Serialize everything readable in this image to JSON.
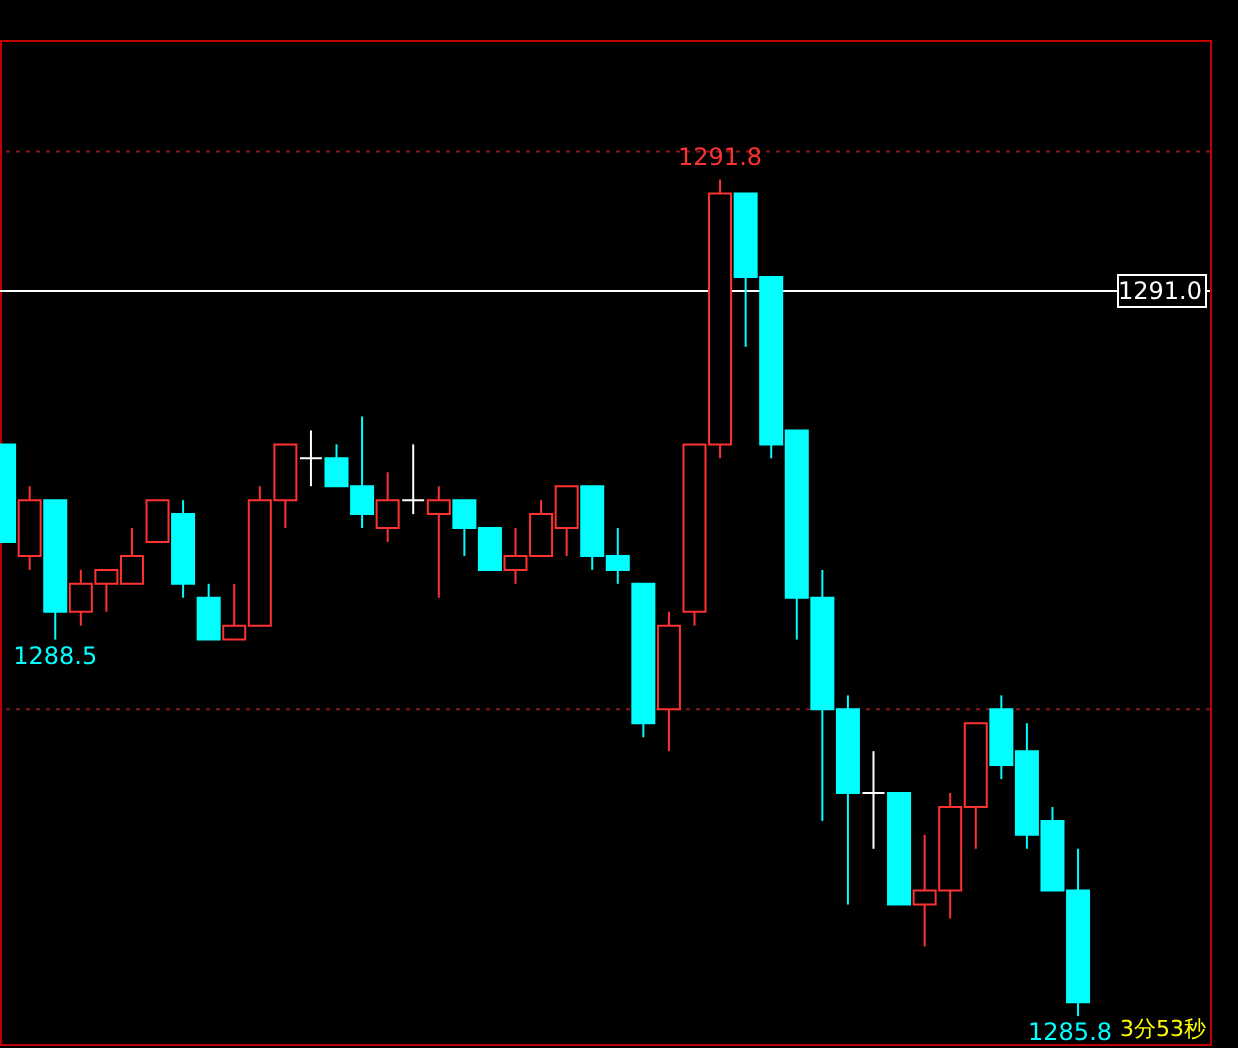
{
  "chart_data": {
    "type": "candlestick",
    "categories": [
      null,
      null,
      null,
      null,
      null,
      null,
      null,
      null,
      null,
      null,
      null,
      null,
      null,
      null,
      null,
      null,
      null,
      null,
      null,
      null,
      null,
      null,
      null,
      null,
      null,
      null,
      null,
      null,
      null,
      null,
      null,
      null,
      null,
      null,
      null,
      null,
      null,
      null,
      null,
      null,
      null,
      null,
      null
    ],
    "ohlc": [
      [
        1289.9,
        1289.9,
        1289.2,
        1289.2
      ],
      [
        1289.1,
        1289.6,
        1289.0,
        1289.5
      ],
      [
        1289.5,
        1289.5,
        1288.5,
        1288.7
      ],
      [
        1288.7,
        1289.0,
        1288.6,
        1288.9
      ],
      [
        1288.9,
        1289.0,
        1288.7,
        1289.0
      ],
      [
        1288.9,
        1289.3,
        1288.9,
        1289.1
      ],
      [
        1289.2,
        1289.5,
        1289.2,
        1289.5
      ],
      [
        1289.4,
        1289.5,
        1288.8,
        1288.9
      ],
      [
        1288.8,
        1288.9,
        1288.5,
        1288.5
      ],
      [
        1288.5,
        1288.9,
        1288.5,
        1288.6
      ],
      [
        1288.6,
        1289.6,
        1288.6,
        1289.5
      ],
      [
        1289.5,
        1289.9,
        1289.3,
        1289.9
      ],
      [
        1289.8,
        1290.0,
        1289.6,
        1289.8
      ],
      [
        1289.8,
        1289.9,
        1289.6,
        1289.6
      ],
      [
        1289.6,
        1290.1,
        1289.3,
        1289.4
      ],
      [
        1289.3,
        1289.7,
        1289.2,
        1289.5
      ],
      [
        1289.5,
        1289.9,
        1289.4,
        1289.5
      ],
      [
        1289.4,
        1289.6,
        1288.8,
        1289.5
      ],
      [
        1289.5,
        1289.5,
        1289.1,
        1289.3
      ],
      [
        1289.3,
        1289.3,
        1289.0,
        1289.0
      ],
      [
        1289.0,
        1289.3,
        1288.9,
        1289.1
      ],
      [
        1289.1,
        1289.5,
        1289.1,
        1289.4
      ],
      [
        1289.3,
        1289.6,
        1289.1,
        1289.6
      ],
      [
        1289.6,
        1289.6,
        1289.0,
        1289.1
      ],
      [
        1289.1,
        1289.3,
        1288.9,
        1289.0
      ],
      [
        1288.9,
        1288.9,
        1287.8,
        1287.9
      ],
      [
        1288.0,
        1288.7,
        1287.7,
        1288.6
      ],
      [
        1288.7,
        1289.9,
        1288.6,
        1289.9
      ],
      [
        1289.9,
        1291.8,
        1289.8,
        1291.7
      ],
      [
        1291.7,
        1291.7,
        1290.6,
        1291.1
      ],
      [
        1291.1,
        1291.1,
        1289.8,
        1289.9
      ],
      [
        1290.0,
        1290.0,
        1288.5,
        1288.8
      ],
      [
        1288.8,
        1289.0,
        1287.2,
        1288.0
      ],
      [
        1288.0,
        1288.1,
        1286.6,
        1287.4
      ],
      [
        1287.4,
        1287.7,
        1287.0,
        1287.4
      ],
      [
        1287.4,
        1287.4,
        1286.6,
        1286.6
      ],
      [
        1286.6,
        1287.1,
        1286.3,
        1286.7
      ],
      [
        1286.7,
        1287.4,
        1286.5,
        1287.3
      ],
      [
        1287.3,
        1287.9,
        1287.0,
        1287.9
      ],
      [
        1288.0,
        1288.1,
        1287.5,
        1287.6
      ],
      [
        1287.7,
        1287.9,
        1287.0,
        1287.1
      ],
      [
        1287.2,
        1287.3,
        1286.7,
        1286.7
      ],
      [
        1286.7,
        1287.0,
        1285.8,
        1285.9
      ]
    ],
    "colors": [
      "#00ffff",
      "#ff3232",
      "#00ffff",
      "#ff3232",
      "#ff3232",
      "#ff3232",
      "#ff3232",
      "#00ffff",
      "#00ffff",
      "#ff3232",
      "#ff3232",
      "#ff3232",
      "#ffffff",
      "#00ffff",
      "#00ffff",
      "#ff3232",
      "#ffffff",
      "#ff3232",
      "#00ffff",
      "#00ffff",
      "#ff3232",
      "#ff3232",
      "#ff3232",
      "#00ffff",
      "#00ffff",
      "#00ffff",
      "#ff3232",
      "#ff3232",
      "#ff3232",
      "#00ffff",
      "#00ffff",
      "#00ffff",
      "#00ffff",
      "#00ffff",
      "#ffffff",
      "#00ffff",
      "#ff3232",
      "#ff3232",
      "#ff3232",
      "#00ffff",
      "#00ffff",
      "#00ffff",
      "#00ffff"
    ],
    "ylim": [
      1285.6,
      1292.8
    ],
    "ref_lines": [
      {
        "axis": "y",
        "value": 1292.0,
        "color": "#8b1a1a",
        "line_style": "dotted"
      },
      {
        "axis": "y",
        "value": 1288.0,
        "color": "#8b1a1a",
        "line_style": "dotted"
      },
      {
        "axis": "y",
        "value": 1291.0,
        "label": "1291.0",
        "color": "#ffffff",
        "line_style": "solid"
      }
    ],
    "annotations": [
      {
        "text": "1291.8",
        "y": 1291.8
      },
      {
        "text": "1288.5",
        "y": 1288.5
      },
      {
        "text": "1285.8",
        "y": 1285.8
      },
      "3分53秒"
    ]
  }
}
